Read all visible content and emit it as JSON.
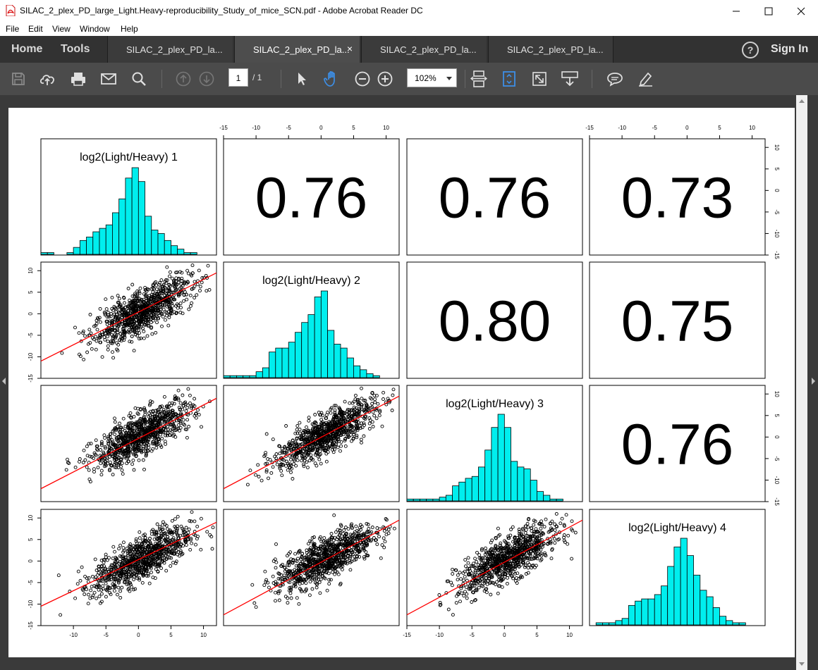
{
  "window": {
    "title": "SILAC_2_plex_PD_large_Light.Heavy-reproducibility_Study_of_mice_SCN.pdf - Adobe Acrobat Reader DC"
  },
  "menu": [
    "File",
    "Edit",
    "View",
    "Window",
    "Help"
  ],
  "nav": {
    "home": "Home",
    "tools": "Tools",
    "sign_in": "Sign In",
    "help_glyph": "?"
  },
  "tabs": [
    {
      "label": "SILAC_2_plex_PD_la...",
      "active": false
    },
    {
      "label": "SILAC_2_plex_PD_la...",
      "active": true,
      "close": "×"
    },
    {
      "label": "SILAC_2_plex_PD_la...",
      "active": false
    },
    {
      "label": "SILAC_2_plex_PD_la...",
      "active": false
    }
  ],
  "toolbar": {
    "page_current": "1",
    "page_total": "/ 1",
    "zoom": "102%",
    "icons": [
      "save-icon",
      "upload-cloud-icon",
      "print-icon",
      "mail-icon",
      "search-icon",
      "prev-page-icon",
      "next-page-icon",
      "select-cursor-icon",
      "hand-tool-icon",
      "zoom-out-icon",
      "zoom-in-icon",
      "fit-width-icon",
      "fit-page-icon",
      "fullscreen-icon",
      "scroll-mode-icon",
      "comment-icon",
      "highlight-pen-icon"
    ]
  },
  "colors": {
    "hist_fill": "#00eeee",
    "fit_line": "#ff0000",
    "accent": "#3d8ee6"
  },
  "chart_data": {
    "type": "scatter",
    "title": "",
    "axis_ticks": [
      "-15",
      "-10",
      "-5",
      "0",
      "5",
      "10"
    ],
    "variables": [
      "log2(Light/Heavy)  1",
      "log2(Light/Heavy)  2",
      "log2(Light/Heavy)  3",
      "log2(Light/Heavy)  4"
    ],
    "correlations": [
      {
        "row": 1,
        "col": 2,
        "label": "0.76",
        "value": 0.76
      },
      {
        "row": 1,
        "col": 3,
        "label": "0.76",
        "value": 0.76
      },
      {
        "row": 1,
        "col": 4,
        "label": "0.73",
        "value": 0.73
      },
      {
        "row": 2,
        "col": 3,
        "label": "0.80",
        "value": 0.8
      },
      {
        "row": 2,
        "col": 4,
        "label": "0.75",
        "value": 0.75
      },
      {
        "row": 3,
        "col": 4,
        "label": "0.76",
        "value": 0.76
      }
    ],
    "xlim": [
      -15,
      12
    ],
    "ylim": [
      -15,
      12
    ],
    "histograms": [
      {
        "variable": 1,
        "bin_start": -15,
        "bin_width": 1,
        "counts": [
          1,
          1,
          0,
          0,
          1,
          4,
          8,
          10,
          13,
          15,
          17,
          24,
          32,
          44,
          50,
          42,
          22,
          14,
          12,
          8,
          5,
          3,
          1,
          1,
          0,
          0
        ]
      },
      {
        "variable": 2,
        "bin_start": -15,
        "bin_width": 1,
        "counts": [
          1,
          1,
          1,
          1,
          1,
          3,
          5,
          13,
          15,
          15,
          18,
          23,
          28,
          32,
          41,
          44,
          24,
          17,
          15,
          10,
          6,
          4,
          2,
          1,
          0,
          0
        ]
      },
      {
        "variable": 3,
        "bin_start": -15,
        "bin_width": 1,
        "counts": [
          1,
          1,
          1,
          1,
          1,
          2,
          3,
          8,
          10,
          12,
          13,
          18,
          27,
          39,
          46,
          39,
          21,
          18,
          17,
          11,
          5,
          3,
          1,
          1,
          0,
          0
        ]
      },
      {
        "variable": 4,
        "bin_start": -15,
        "bin_width": 1,
        "counts": [
          0,
          1,
          1,
          1,
          2,
          3,
          9,
          11,
          12,
          12,
          14,
          18,
          27,
          36,
          40,
          32,
          23,
          16,
          13,
          8,
          4,
          2,
          1,
          1,
          0,
          0
        ]
      }
    ],
    "fit_lines": [
      {
        "row": 2,
        "col": 1,
        "from": [
          -15,
          -11
        ],
        "to": [
          12,
          9.5
        ]
      },
      {
        "row": 3,
        "col": 1,
        "from": [
          -15,
          -12
        ],
        "to": [
          12,
          9
        ]
      },
      {
        "row": 3,
        "col": 2,
        "from": [
          -15,
          -12
        ],
        "to": [
          12,
          9.5
        ]
      },
      {
        "row": 4,
        "col": 1,
        "from": [
          -15,
          -10.5
        ],
        "to": [
          12,
          9
        ]
      },
      {
        "row": 4,
        "col": 2,
        "from": [
          -15,
          -12.5
        ],
        "to": [
          12,
          9.5
        ]
      },
      {
        "row": 4,
        "col": 3,
        "from": [
          -15,
          -12.5
        ],
        "to": [
          12,
          9.5
        ]
      }
    ],
    "points_per_panel": 900,
    "grid": false,
    "legend": "none"
  }
}
